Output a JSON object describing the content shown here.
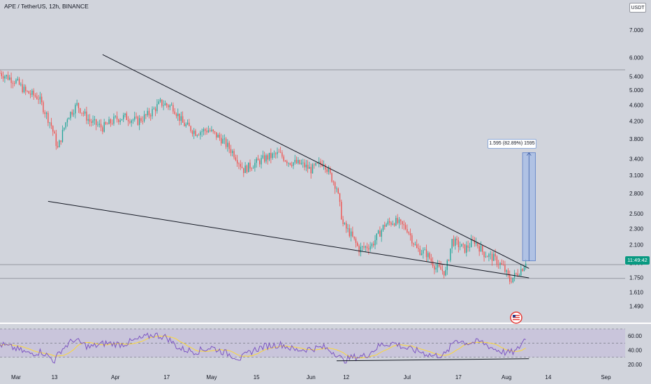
{
  "header": {
    "symbol": "APE / TetherUS, 12h, BINANCE",
    "currency": "USDT"
  },
  "price_axis": {
    "ticks": [
      "7.000",
      "6.000",
      "5.400",
      "5.000",
      "4.600",
      "4.200",
      "3.800",
      "3.400",
      "3.100",
      "2.800",
      "2.500",
      "2.300",
      "2.100",
      "1.900",
      "1.750",
      "1.610",
      "1.490"
    ],
    "timer": "11:49:42"
  },
  "rsi_axis": {
    "ticks": [
      "60.00",
      "40.00",
      "20.00"
    ]
  },
  "time_axis": {
    "labels": [
      "Mar",
      "13",
      "Apr",
      "17",
      "May",
      "15",
      "Jun",
      "12",
      "Jul",
      "17",
      "Aug",
      "14",
      "Sep"
    ]
  },
  "measure": {
    "label": "1.595 (82.89%) 1595"
  },
  "colors": {
    "up": "#26a69a",
    "down": "#ef5350",
    "background": "#d1d4dc",
    "rsi_line": "#7e57c2",
    "rsi_ma": "#fdd835",
    "measure_fill": "#a8bde6",
    "timer": "#089981"
  },
  "chart_data": {
    "type": "candlestick",
    "title": "APE / TetherUS, 12h, BINANCE",
    "price_scale": "log",
    "ylim": [
      1.38,
      7.6
    ],
    "x_range": [
      "2022-02-24",
      "2022-09-07"
    ],
    "price_path": [
      [
        "2022-02-24",
        5.5
      ],
      [
        "2022-03-01",
        5.25
      ],
      [
        "2022-03-04",
        4.95
      ],
      [
        "2022-03-08",
        4.8
      ],
      [
        "2022-03-12",
        4.1
      ],
      [
        "2022-03-14",
        3.6
      ],
      [
        "2022-03-17",
        4.3
      ],
      [
        "2022-03-20",
        4.6
      ],
      [
        "2022-03-24",
        4.2
      ],
      [
        "2022-03-28",
        4.05
      ],
      [
        "2022-04-01",
        4.25
      ],
      [
        "2022-04-04",
        4.3
      ],
      [
        "2022-04-08",
        4.2
      ],
      [
        "2022-04-12",
        4.4
      ],
      [
        "2022-04-15",
        4.65
      ],
      [
        "2022-04-19",
        4.55
      ],
      [
        "2022-04-22",
        4.15
      ],
      [
        "2022-04-26",
        3.95
      ],
      [
        "2022-04-30",
        4.0
      ],
      [
        "2022-05-04",
        3.8
      ],
      [
        "2022-05-08",
        3.5
      ],
      [
        "2022-05-11",
        3.2
      ],
      [
        "2022-05-14",
        3.3
      ],
      [
        "2022-05-18",
        3.42
      ],
      [
        "2022-05-22",
        3.5
      ],
      [
        "2022-05-25",
        3.35
      ],
      [
        "2022-05-29",
        3.3
      ],
      [
        "2022-06-01",
        3.2
      ],
      [
        "2022-06-05",
        3.35
      ],
      [
        "2022-06-07",
        3.1
      ],
      [
        "2022-06-09",
        2.9
      ],
      [
        "2022-06-11",
        2.35
      ],
      [
        "2022-06-13",
        2.25
      ],
      [
        "2022-06-16",
        2.05
      ],
      [
        "2022-06-20",
        2.1
      ],
      [
        "2022-06-24",
        2.35
      ],
      [
        "2022-06-27",
        2.4
      ],
      [
        "2022-07-01",
        2.3
      ],
      [
        "2022-07-04",
        2.05
      ],
      [
        "2022-07-07",
        2.0
      ],
      [
        "2022-07-10",
        1.85
      ],
      [
        "2022-07-13",
        1.8
      ],
      [
        "2022-07-15",
        2.15
      ],
      [
        "2022-07-19",
        2.05
      ],
      [
        "2022-07-22",
        2.15
      ],
      [
        "2022-07-25",
        2.0
      ],
      [
        "2022-07-28",
        1.95
      ],
      [
        "2022-07-31",
        1.85
      ],
      [
        "2022-08-02",
        1.72
      ],
      [
        "2022-08-04",
        1.78
      ],
      [
        "2022-08-06",
        1.85
      ],
      [
        "2022-08-07",
        1.92
      ]
    ],
    "trendlines": [
      {
        "from": [
          "2022-03-28",
          6.1
        ],
        "to": [
          "2022-08-08",
          1.84
        ]
      },
      {
        "from": [
          "2022-03-11",
          2.68
        ],
        "to": [
          "2022-08-08",
          1.745
        ]
      }
    ],
    "horizontal_levels": [
      5.6,
      1.88,
      1.74
    ],
    "measure": {
      "from": [
        "2022-08-06",
        1.92
      ],
      "to": [
        "2022-08-10",
        3.52
      ],
      "change": 1.595,
      "percent": 82.89
    },
    "rsi": {
      "period_ylim": [
        10,
        75
      ],
      "bands": [
        30,
        50,
        70
      ],
      "path": [
        [
          "2022-02-24",
          48
        ],
        [
          "2022-03-01",
          42
        ],
        [
          "2022-03-05",
          35
        ],
        [
          "2022-03-09",
          38
        ],
        [
          "2022-03-13",
          25
        ],
        [
          "2022-03-15",
          40
        ],
        [
          "2022-03-19",
          55
        ],
        [
          "2022-03-24",
          44
        ],
        [
          "2022-03-29",
          50
        ],
        [
          "2022-04-03",
          48
        ],
        [
          "2022-04-08",
          55
        ],
        [
          "2022-04-13",
          62
        ],
        [
          "2022-04-17",
          58
        ],
        [
          "2022-04-21",
          42
        ],
        [
          "2022-04-26",
          38
        ],
        [
          "2022-05-01",
          44
        ],
        [
          "2022-05-06",
          35
        ],
        [
          "2022-05-10",
          28
        ],
        [
          "2022-05-14",
          40
        ],
        [
          "2022-05-18",
          46
        ],
        [
          "2022-05-23",
          48
        ],
        [
          "2022-05-27",
          40
        ],
        [
          "2022-06-01",
          42
        ],
        [
          "2022-06-05",
          44
        ],
        [
          "2022-06-09",
          35
        ],
        [
          "2022-06-11",
          25
        ],
        [
          "2022-06-14",
          30
        ],
        [
          "2022-06-18",
          32
        ],
        [
          "2022-06-23",
          48
        ],
        [
          "2022-06-27",
          50
        ],
        [
          "2022-07-01",
          42
        ],
        [
          "2022-07-05",
          38
        ],
        [
          "2022-07-09",
          32
        ],
        [
          "2022-07-13",
          34
        ],
        [
          "2022-07-16",
          55
        ],
        [
          "2022-07-20",
          50
        ],
        [
          "2022-07-24",
          52
        ],
        [
          "2022-07-28",
          42
        ],
        [
          "2022-08-01",
          36
        ],
        [
          "2022-08-04",
          38
        ],
        [
          "2022-08-07",
          58
        ]
      ],
      "divergence": {
        "from": [
          "2022-06-09",
          25
        ],
        "to": [
          "2022-08-08",
          28
        ]
      }
    }
  }
}
